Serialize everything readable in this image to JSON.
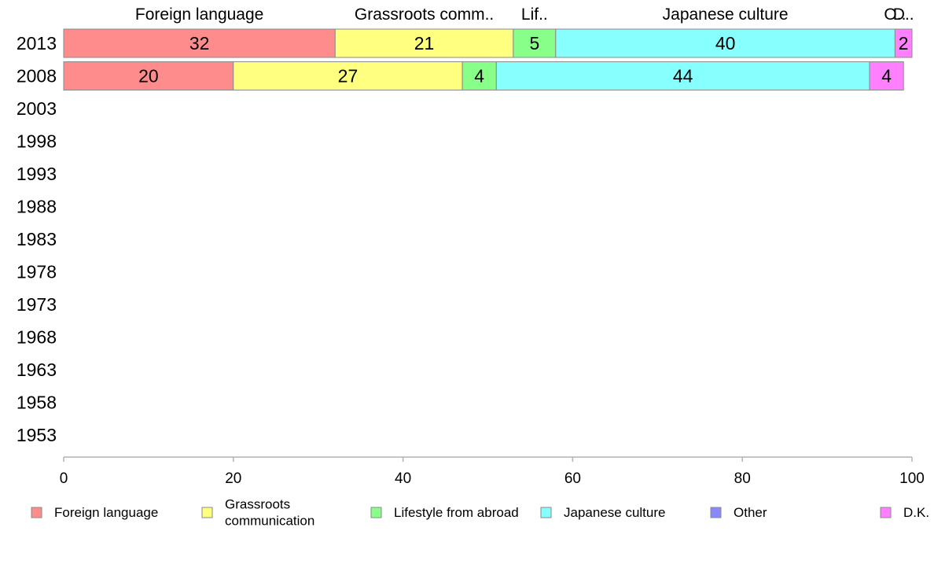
{
  "chart_data": {
    "type": "bar",
    "orientation": "horizontal",
    "stacked": "percent",
    "categories": [
      "2013",
      "2008",
      "2003",
      "1998",
      "1993",
      "1988",
      "1983",
      "1978",
      "1973",
      "1968",
      "1963",
      "1958",
      "1953"
    ],
    "series": [
      {
        "name": "Foreign language",
        "values": [
          32,
          20,
          null,
          null,
          null,
          null,
          null,
          null,
          null,
          null,
          null,
          null,
          null
        ],
        "color": "#ff8c8c"
      },
      {
        "name": "Grassroots communication",
        "values": [
          21,
          27,
          null,
          null,
          null,
          null,
          null,
          null,
          null,
          null,
          null,
          null,
          null
        ],
        "color": "#ffff80"
      },
      {
        "name": "Lifestyle from abroad",
        "values": [
          5,
          4,
          null,
          null,
          null,
          null,
          null,
          null,
          null,
          null,
          null,
          null,
          null
        ],
        "color": "#88ff88"
      },
      {
        "name": "Japanese culture",
        "values": [
          40,
          44,
          null,
          null,
          null,
          null,
          null,
          null,
          null,
          null,
          null,
          null,
          null
        ],
        "color": "#88ffff"
      },
      {
        "name": "Other",
        "values": [
          0,
          0,
          null,
          null,
          null,
          null,
          null,
          null,
          null,
          null,
          null,
          null,
          null
        ],
        "color": "#8888ff"
      },
      {
        "name": "D.K.",
        "values": [
          2,
          4,
          null,
          null,
          null,
          null,
          null,
          null,
          null,
          null,
          null,
          null,
          null
        ],
        "color": "#ff80ff"
      }
    ],
    "top_labels": [
      {
        "text": "Foreign language",
        "series": 0
      },
      {
        "text": "Grassroots comm..",
        "series": 1
      },
      {
        "text": "Lif..",
        "series": 2
      },
      {
        "text": "Japanese culture",
        "series": 3
      },
      {
        "text": "O..",
        "series": 4
      },
      {
        "text": "D..",
        "series": 5
      }
    ],
    "value_labels": {
      "2013": [
        "32",
        "21",
        "5",
        "40",
        "",
        "2"
      ],
      "2008": [
        "20",
        "27",
        "4",
        "44",
        "",
        "4"
      ]
    },
    "xlim": [
      0,
      100
    ],
    "xticks": [
      "0",
      "20",
      "40",
      "60",
      "80",
      "100"
    ],
    "legend": {
      "position": "bottom",
      "entries": [
        {
          "label_lines": [
            "Foreign language"
          ]
        },
        {
          "label_lines": [
            "Grassroots",
            "communication"
          ]
        },
        {
          "label_lines": [
            "Lifestyle from abroad"
          ]
        },
        {
          "label_lines": [
            "Japanese culture"
          ]
        },
        {
          "label_lines": [
            "Other"
          ]
        },
        {
          "label_lines": [
            "D.K."
          ]
        }
      ]
    },
    "grid": false
  }
}
